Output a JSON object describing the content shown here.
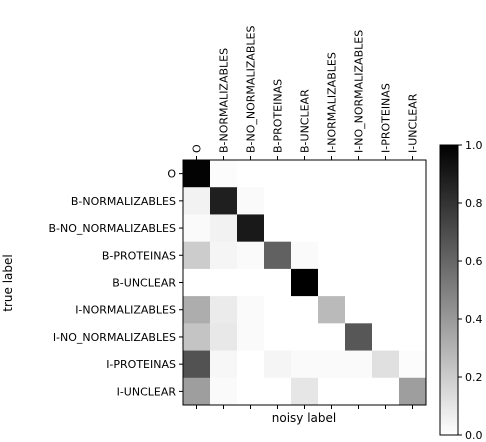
{
  "chart_data": {
    "type": "heatmap",
    "xlabel": "noisy label",
    "ylabel": "true label",
    "x_labels": [
      "O",
      "B-NORMALIZABLES",
      "B-NO_NORMALIZABLES",
      "B-PROTEINAS",
      "B-UNCLEAR",
      "I-NORMALIZABLES",
      "I-NO_NORMALIZABLES",
      "I-PROTEINAS",
      "I-UNCLEAR"
    ],
    "y_labels": [
      "O",
      "B-NORMALIZABLES",
      "B-NO_NORMALIZABLES",
      "B-PROTEINAS",
      "B-UNCLEAR",
      "I-NORMALIZABLES",
      "I-NO_NORMALIZABLES",
      "I-PROTEINAS",
      "I-UNCLEAR"
    ],
    "values": [
      [
        0.99,
        0.01,
        0.0,
        0.0,
        0.0,
        0.0,
        0.0,
        0.0,
        0.0
      ],
      [
        0.05,
        0.88,
        0.02,
        0.0,
        0.0,
        0.0,
        0.0,
        0.0,
        0.0
      ],
      [
        0.02,
        0.05,
        0.9,
        0.0,
        0.0,
        0.0,
        0.0,
        0.0,
        0.0
      ],
      [
        0.2,
        0.04,
        0.02,
        0.62,
        0.02,
        0.0,
        0.0,
        0.0,
        0.0
      ],
      [
        0.0,
        0.0,
        0.0,
        0.0,
        1.0,
        0.0,
        0.0,
        0.0,
        0.0
      ],
      [
        0.32,
        0.08,
        0.02,
        0.0,
        0.0,
        0.27,
        0.0,
        0.0,
        0.0
      ],
      [
        0.23,
        0.09,
        0.02,
        0.0,
        0.0,
        0.0,
        0.66,
        0.0,
        0.0
      ],
      [
        0.68,
        0.03,
        0.0,
        0.04,
        0.02,
        0.02,
        0.02,
        0.12,
        0.01
      ],
      [
        0.38,
        0.02,
        0.0,
        0.0,
        0.1,
        0.0,
        0.0,
        0.0,
        0.38
      ]
    ],
    "colorbar": {
      "range": [
        0.0,
        1.0
      ],
      "ticks": [
        0.0,
        0.2,
        0.4,
        0.6,
        0.8,
        1.0
      ],
      "tick_labels": [
        "0.0",
        "0.2",
        "0.4",
        "0.6",
        "0.8",
        "1.0"
      ],
      "colormap": "Greys"
    }
  }
}
